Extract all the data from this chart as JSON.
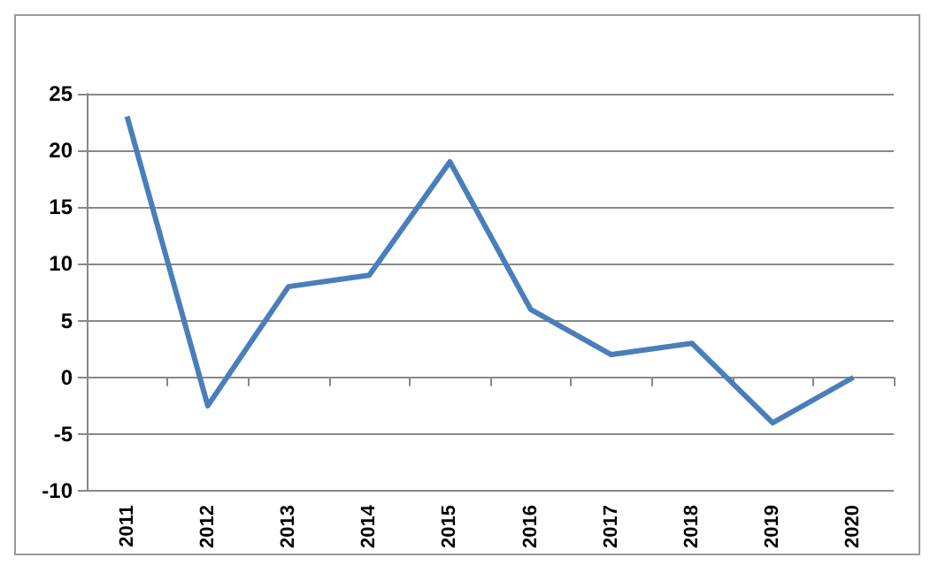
{
  "chart_data": {
    "type": "line",
    "categories": [
      "2011",
      "2012",
      "2013",
      "2014",
      "2015",
      "2016",
      "2017",
      "2018",
      "2019",
      "2020"
    ],
    "series": [
      {
        "color": "#4a7ebb",
        "values": [
          23,
          -2.5,
          8,
          9,
          19,
          6,
          2,
          3,
          -4,
          0
        ]
      }
    ],
    "ylim": [
      -10,
      25
    ],
    "yticks": [
      -10,
      -5,
      0,
      5,
      10,
      15,
      20,
      25
    ],
    "grid": "y",
    "marker": "none",
    "line_style": "solid"
  }
}
